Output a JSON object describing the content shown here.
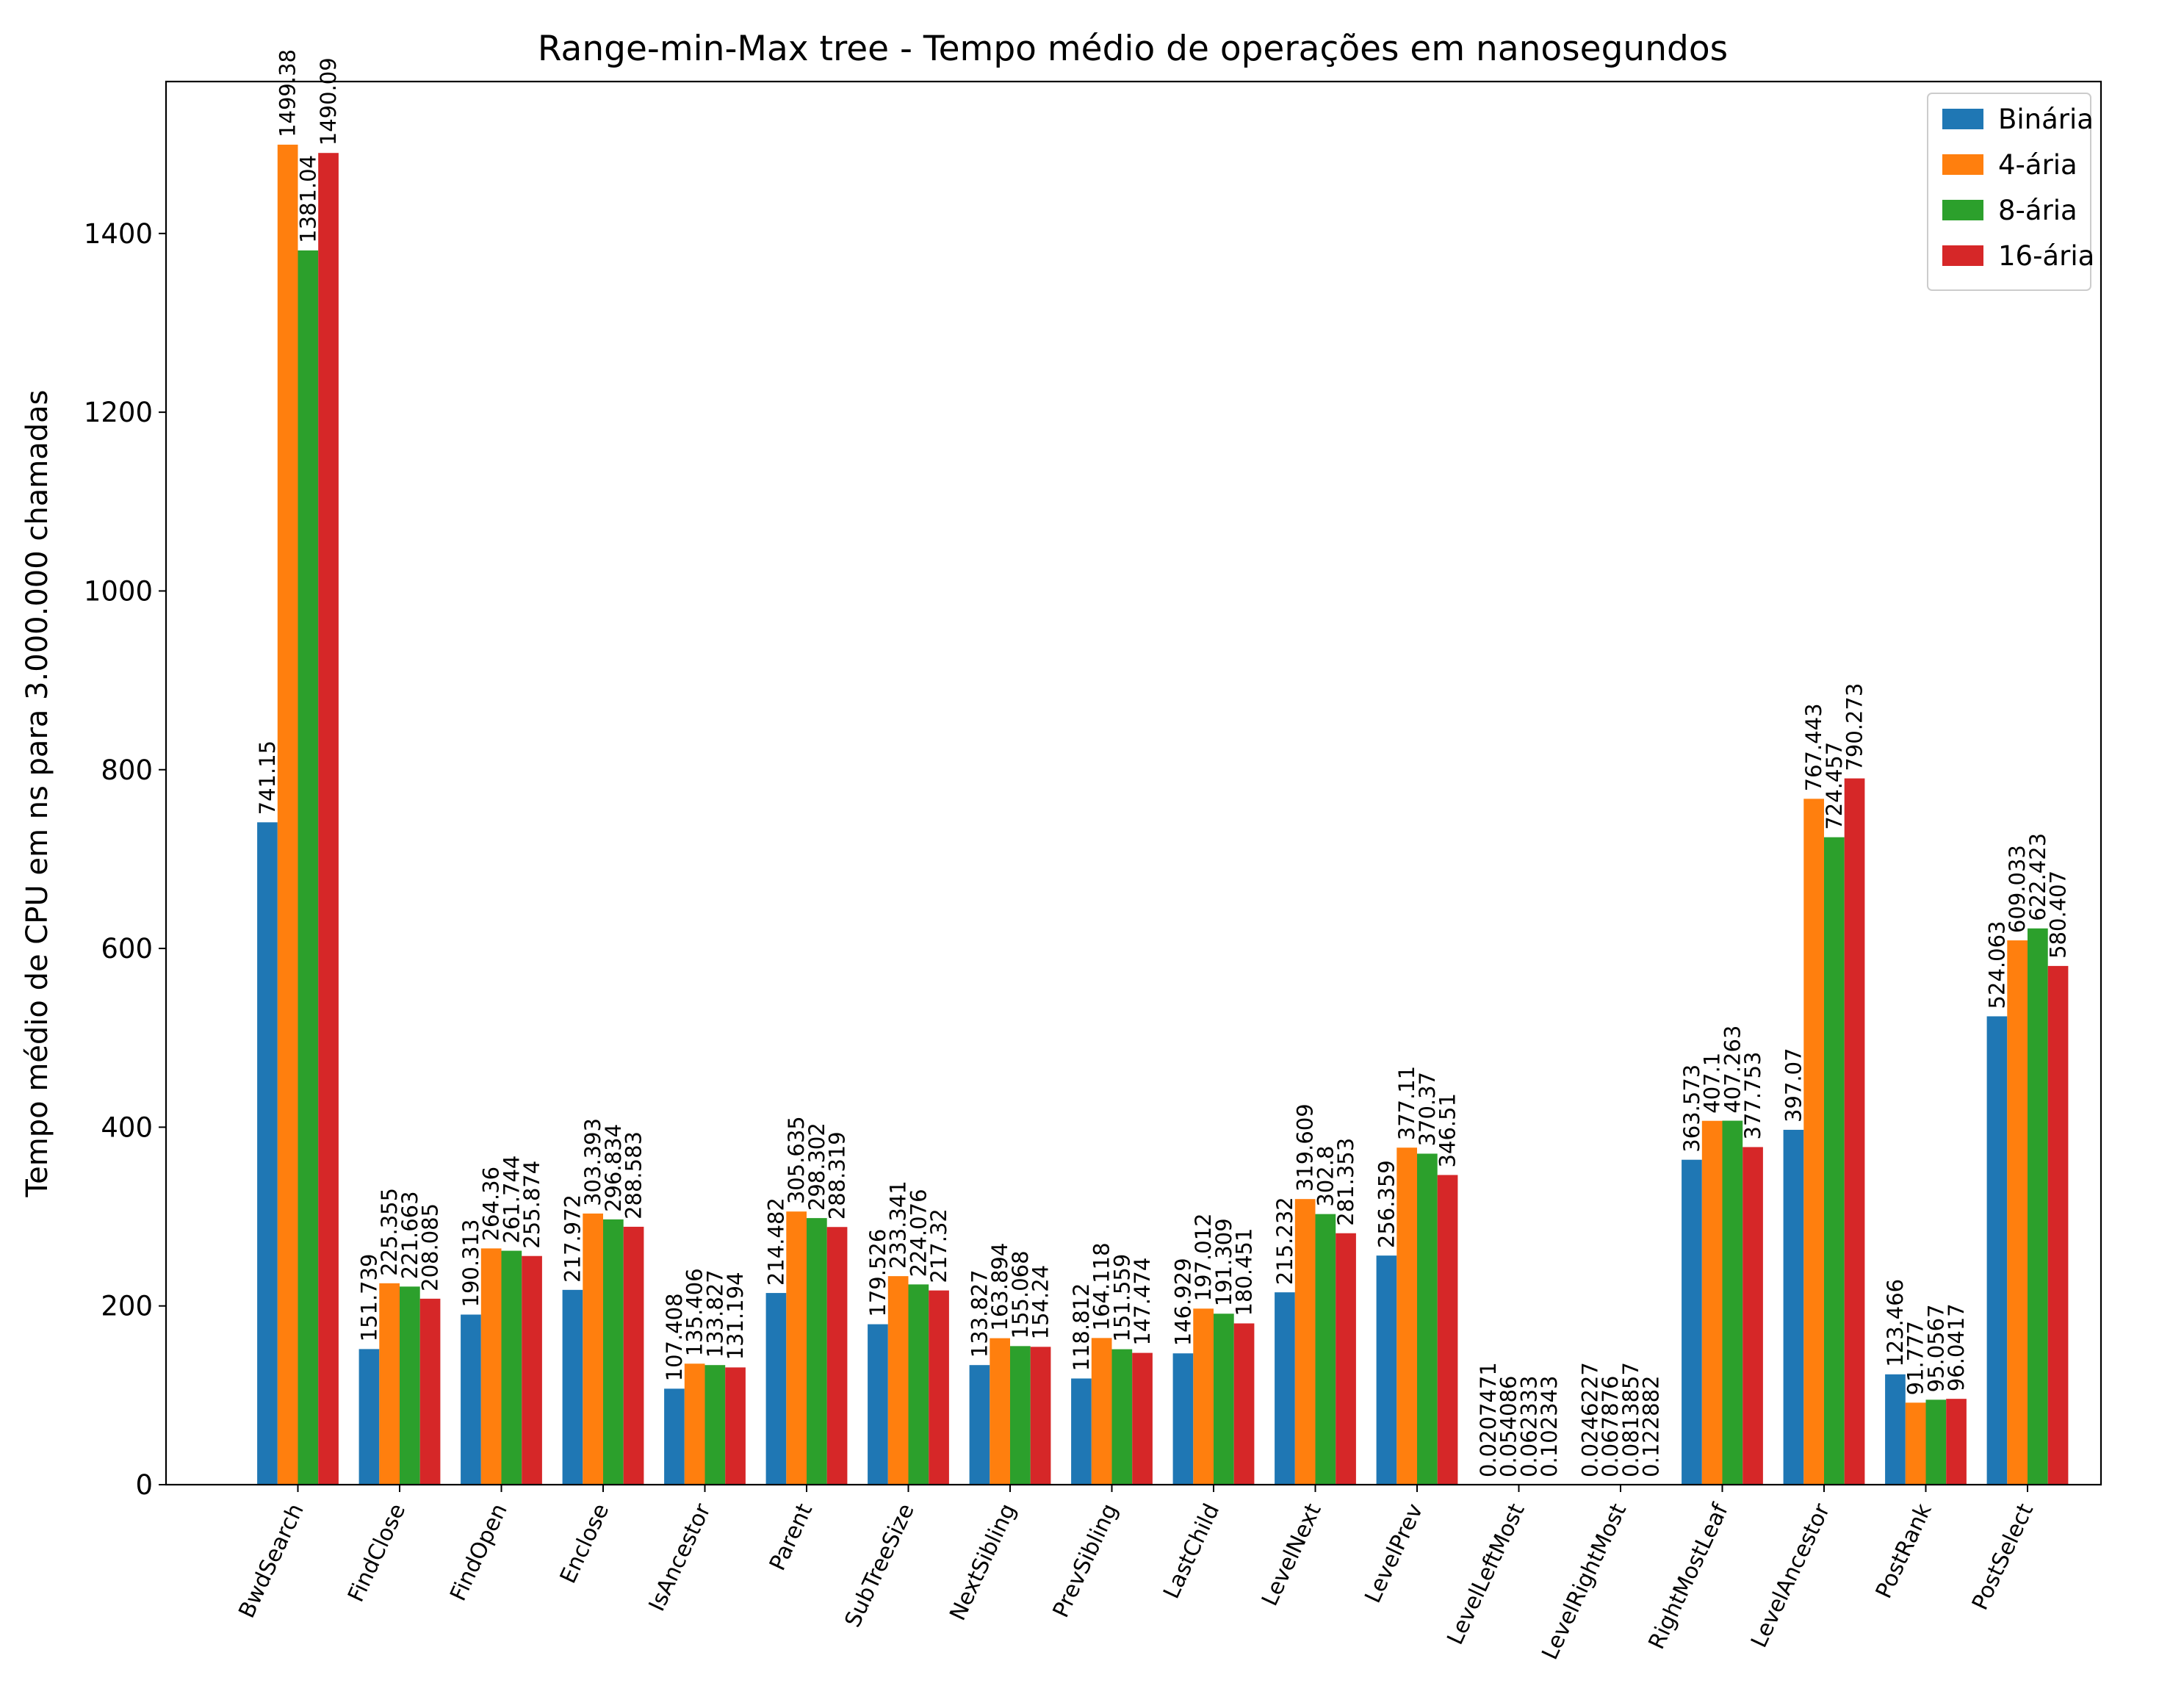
{
  "chart_data": {
    "type": "bar",
    "title": "Range-min-Max tree - Tempo médio de operações em nanosegundos",
    "xlabel": "",
    "ylabel": "Tempo médio de CPU em ns para 3.000.000 chamadas",
    "ylim": [
      0,
      1570
    ],
    "yticks": [
      0,
      200,
      400,
      600,
      800,
      1000,
      1200,
      1400
    ],
    "ytick_labels": [
      "0",
      "200",
      "400",
      "600",
      "800",
      "1000",
      "1200",
      "1400"
    ],
    "grid": false,
    "legend_position": "top-right",
    "categories": [
      "BwdSearch",
      "FindClose",
      "FindOpen",
      "Enclose",
      "IsAncestor",
      "Parent",
      "SubTreeSize",
      "NextSibling",
      "PrevSibling",
      "LastChild",
      "LevelNext",
      "LevelPrev",
      "LevelLeftMost",
      "LevelRightMost",
      "RightMostLeaf",
      "LevelAncestor",
      "PostRank",
      "PostSelect"
    ],
    "series": [
      {
        "name": "Binária",
        "color": "#1f77b4",
        "values": [
          741.15,
          151.739,
          190.313,
          217.972,
          107.408,
          214.482,
          179.526,
          133.827,
          118.812,
          146.929,
          215.232,
          256.359,
          0.0207471,
          0.0246227,
          363.573,
          397.07,
          123.466,
          524.063
        ],
        "labels": [
          "741.15",
          "151.739",
          "190.313",
          "217.972",
          "107.408",
          "214.482",
          "179.526",
          "133.827",
          "118.812",
          "146.929",
          "215.232",
          "256.359",
          "0.0207471",
          "0.0246227",
          "363.573",
          "397.07",
          "123.466",
          "524.063"
        ]
      },
      {
        "name": "4-ária",
        "color": "#ff7f0e",
        "values": [
          1499.38,
          225.355,
          264.36,
          303.393,
          135.406,
          305.635,
          233.341,
          163.894,
          164.118,
          197.012,
          319.609,
          377.11,
          0.054086,
          0.067876,
          407.1,
          767.443,
          91.777,
          609.033
        ],
        "labels": [
          "1499.38",
          "225.355",
          "264.36",
          "303.393",
          "135.406",
          "305.635",
          "233.341",
          "163.894",
          "164.118",
          "197.012",
          "319.609",
          "377.11",
          "0.054086",
          "0.067876",
          "407.1",
          "767.443",
          "91.777",
          "609.033"
        ]
      },
      {
        "name": "8-ária",
        "color": "#2ca02c",
        "values": [
          1381.04,
          221.663,
          261.744,
          296.834,
          133.827,
          298.302,
          224.076,
          155.068,
          151.559,
          191.309,
          302.8,
          370.37,
          0.062333,
          0.0813857,
          407.263,
          724.457,
          95.0567,
          622.423
        ],
        "labels": [
          "1381.04",
          "221.663",
          "261.744",
          "296.834",
          "133.827",
          "298.302",
          "224.076",
          "155.068",
          "151.559",
          "191.309",
          "302.8",
          "370.37",
          "0.062333",
          "0.0813857",
          "407.263",
          "724.457",
          "95.0567",
          "622.423"
        ]
      },
      {
        "name": "16-ária",
        "color": "#d62728",
        "values": [
          1490.09,
          208.085,
          255.874,
          288.583,
          131.194,
          288.319,
          217.32,
          154.24,
          147.474,
          180.451,
          281.353,
          346.51,
          0.102343,
          0.122882,
          377.753,
          790.273,
          96.0417,
          580.407
        ],
        "labels": [
          "1490.09",
          "208.085",
          "255.874",
          "288.583",
          "131.194",
          "288.319",
          "217.32",
          "154.24",
          "147.474",
          "180.451",
          "281.353",
          "346.51",
          "0.102343",
          "0.122882",
          "377.753",
          "790.273",
          "96.0417",
          "580.407"
        ]
      }
    ]
  }
}
